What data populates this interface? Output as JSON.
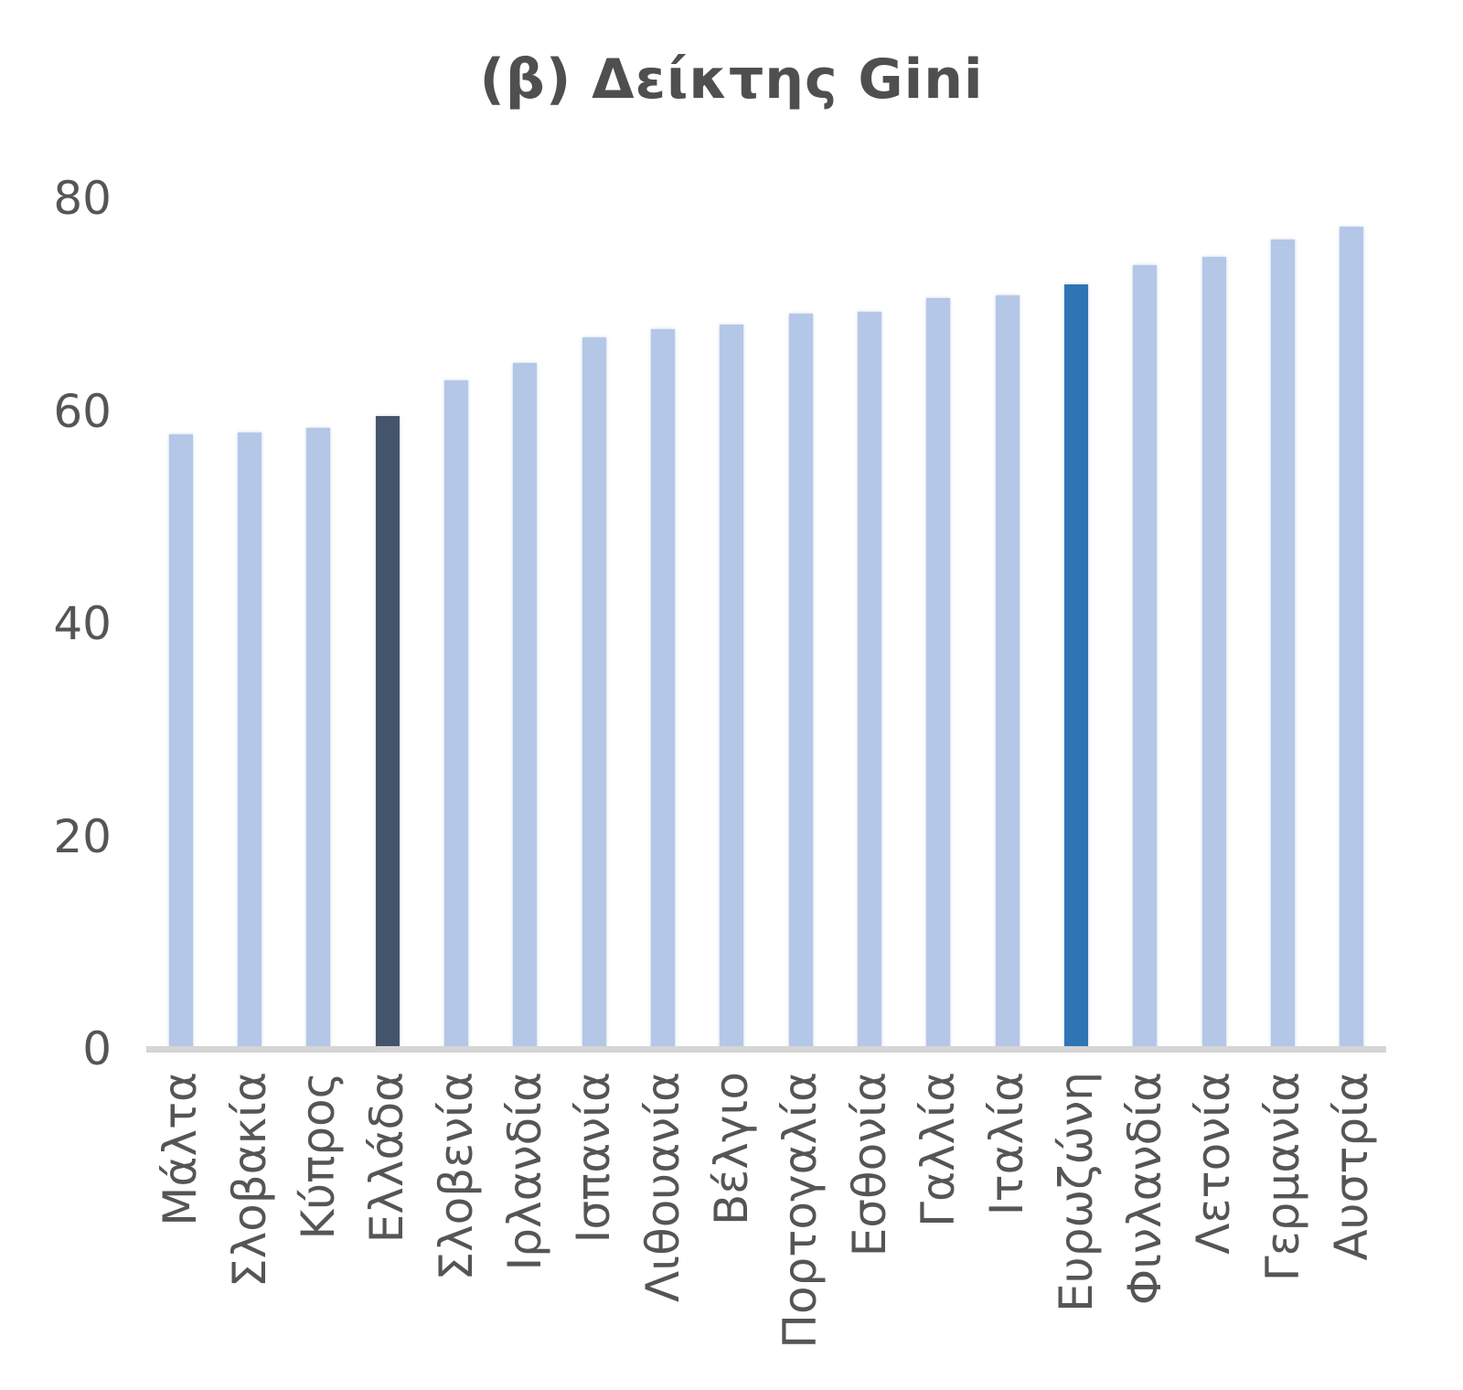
{
  "chart_data": {
    "type": "bar",
    "title": "(β) Δείκτης Gini",
    "categories": [
      "Μάλτα",
      "Σλοβακία",
      "Κύπρος",
      "Ελλάδα",
      "Σλοβενία",
      "Ιρλανδία",
      "Ισπανία",
      "Λιθουανία",
      "Βέλγιο",
      "Πορτογαλία",
      "Εσθονία",
      "Γαλλία",
      "Ιταλία",
      "Ευρωζώνη",
      "Φινλανδία",
      "Λετονία",
      "Γερμανία",
      "Αυστρία"
    ],
    "values": [
      57.8,
      58.0,
      58.4,
      59.5,
      62.9,
      64.5,
      66.9,
      67.7,
      68.1,
      69.2,
      69.3,
      70.6,
      70.9,
      71.9,
      73.7,
      74.5,
      76.1,
      77.3
    ],
    "xlabel": "",
    "ylabel": "",
    "ylim": [
      0,
      80
    ],
    "yticks": [
      0,
      20,
      40,
      60,
      80
    ],
    "grid": false,
    "legend_position": "none",
    "bar_colors": {
      "default": "#B4C7E7",
      "Ελλάδα": "#44546A",
      "Ευρωζώνη": "#2E75B6"
    },
    "text_color": "#555555",
    "title_color": "#4f4f4f",
    "axis_line_color": "#d5d5d5"
  }
}
